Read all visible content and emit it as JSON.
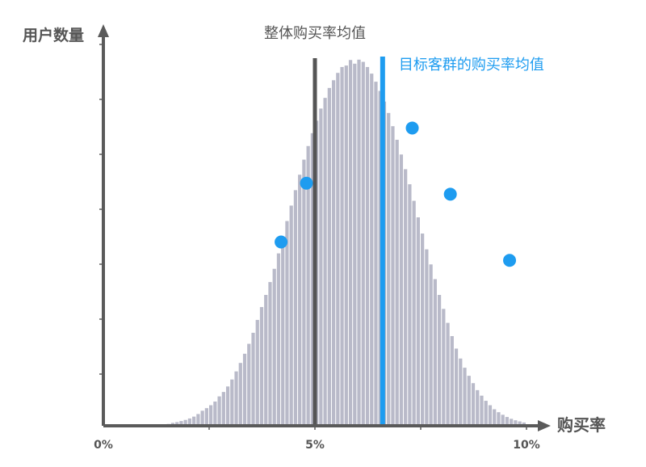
{
  "chart_data": {
    "type": "bar",
    "title": "",
    "xlabel": "购买率",
    "ylabel": "用户数量",
    "x_tick_labels": [
      "0%",
      "5%",
      "10%"
    ],
    "xlim": [
      0,
      10
    ],
    "ylim": [
      0,
      100
    ],
    "bin_width": 0.1,
    "histogram_values": [
      0.5,
      0.8,
      1.0,
      1.3,
      1.6,
      2.0,
      2.5,
      3.2,
      4.1,
      4.8,
      5.6,
      6.6,
      8.0,
      9.2,
      10.7,
      12.6,
      14.8,
      17.1,
      19.6,
      22.3,
      25.3,
      28.8,
      32.3,
      35.6,
      39.1,
      42.7,
      46.9,
      51.3,
      55.7,
      59.9,
      64.1,
      68.3,
      72.4,
      76.1,
      79.6,
      83.0,
      86.3,
      89.2,
      91.9,
      94.0,
      96.0,
      97.6,
      98.0,
      99.5,
      98.5,
      99.6,
      99.0,
      97.6,
      95.8,
      93.6,
      91.1,
      88.2,
      85.1,
      81.5,
      77.8,
      73.8,
      69.8,
      65.7,
      61.2,
      56.7,
      52.3,
      48.0,
      43.9,
      39.9,
      35.6,
      31.8,
      28.0,
      24.4,
      21.0,
      18.3,
      15.8,
      13.6,
      11.6,
      9.7,
      8.2,
      6.8,
      5.6,
      4.5,
      3.7,
      3.0,
      2.4,
      1.9,
      1.5,
      1.2,
      0.9
    ],
    "histogram_start": 1.5,
    "overall_mean": {
      "x": 5.0,
      "label": "整体购买率均值"
    },
    "target_mean": {
      "x": 6.6,
      "label": "目标客群的购买率均值"
    },
    "target_points": [
      {
        "x": 4.2,
        "y": 50
      },
      {
        "x": 4.8,
        "y": 66
      },
      {
        "x": 7.3,
        "y": 81
      },
      {
        "x": 8.2,
        "y": 63
      },
      {
        "x": 9.6,
        "y": 45
      }
    ],
    "colors": {
      "bars": "#b9bac9",
      "bar_edge": "#ffffff",
      "axis": "#5a5a5a",
      "overall_line": "#555555",
      "target_line": "#1e9cf0",
      "points": "#1e9cf0",
      "text": "#555555",
      "target_text": "#1e9cf0"
    },
    "grid": false,
    "legend": "none"
  }
}
